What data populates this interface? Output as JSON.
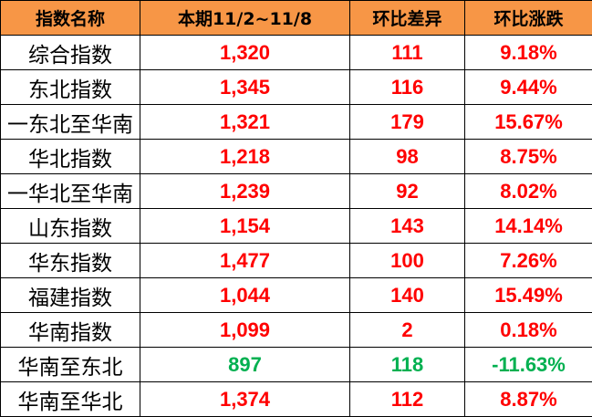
{
  "headers": [
    "指数名称",
    "本期11/2~11/8",
    "环比差异",
    "环比涨跌"
  ],
  "colors": {
    "header_bg": "#F79646",
    "up": "#FF0000",
    "down": "#00B050"
  },
  "rows": [
    {
      "name": "综合指数",
      "value": "1,320",
      "diff": "111",
      "pct": "9.18%",
      "trend": "up"
    },
    {
      "name": "东北指数",
      "value": "1,345",
      "diff": "116",
      "pct": "9.44%",
      "trend": "up"
    },
    {
      "name": "一东北至华南",
      "value": "1,321",
      "diff": "179",
      "pct": "15.67%",
      "trend": "up"
    },
    {
      "name": "华北指数",
      "value": "1,218",
      "diff": "98",
      "pct": "8.75%",
      "trend": "up"
    },
    {
      "name": "一华北至华南",
      "value": "1,239",
      "diff": "92",
      "pct": "8.02%",
      "trend": "up"
    },
    {
      "name": "山东指数",
      "value": "1,154",
      "diff": "143",
      "pct": "14.14%",
      "trend": "up"
    },
    {
      "name": "华东指数",
      "value": "1,477",
      "diff": "100",
      "pct": "7.26%",
      "trend": "up"
    },
    {
      "name": "福建指数",
      "value": "1,044",
      "diff": "140",
      "pct": "15.49%",
      "trend": "up"
    },
    {
      "name": "华南指数",
      "value": "1,099",
      "diff": "2",
      "pct": "0.18%",
      "trend": "up"
    },
    {
      "name": "华南至东北",
      "value": "897",
      "diff": "118",
      "pct": "-11.63%",
      "trend": "down"
    },
    {
      "name": "华南至华北",
      "value": "1,374",
      "diff": "112",
      "pct": "8.87%",
      "trend": "up"
    }
  ]
}
